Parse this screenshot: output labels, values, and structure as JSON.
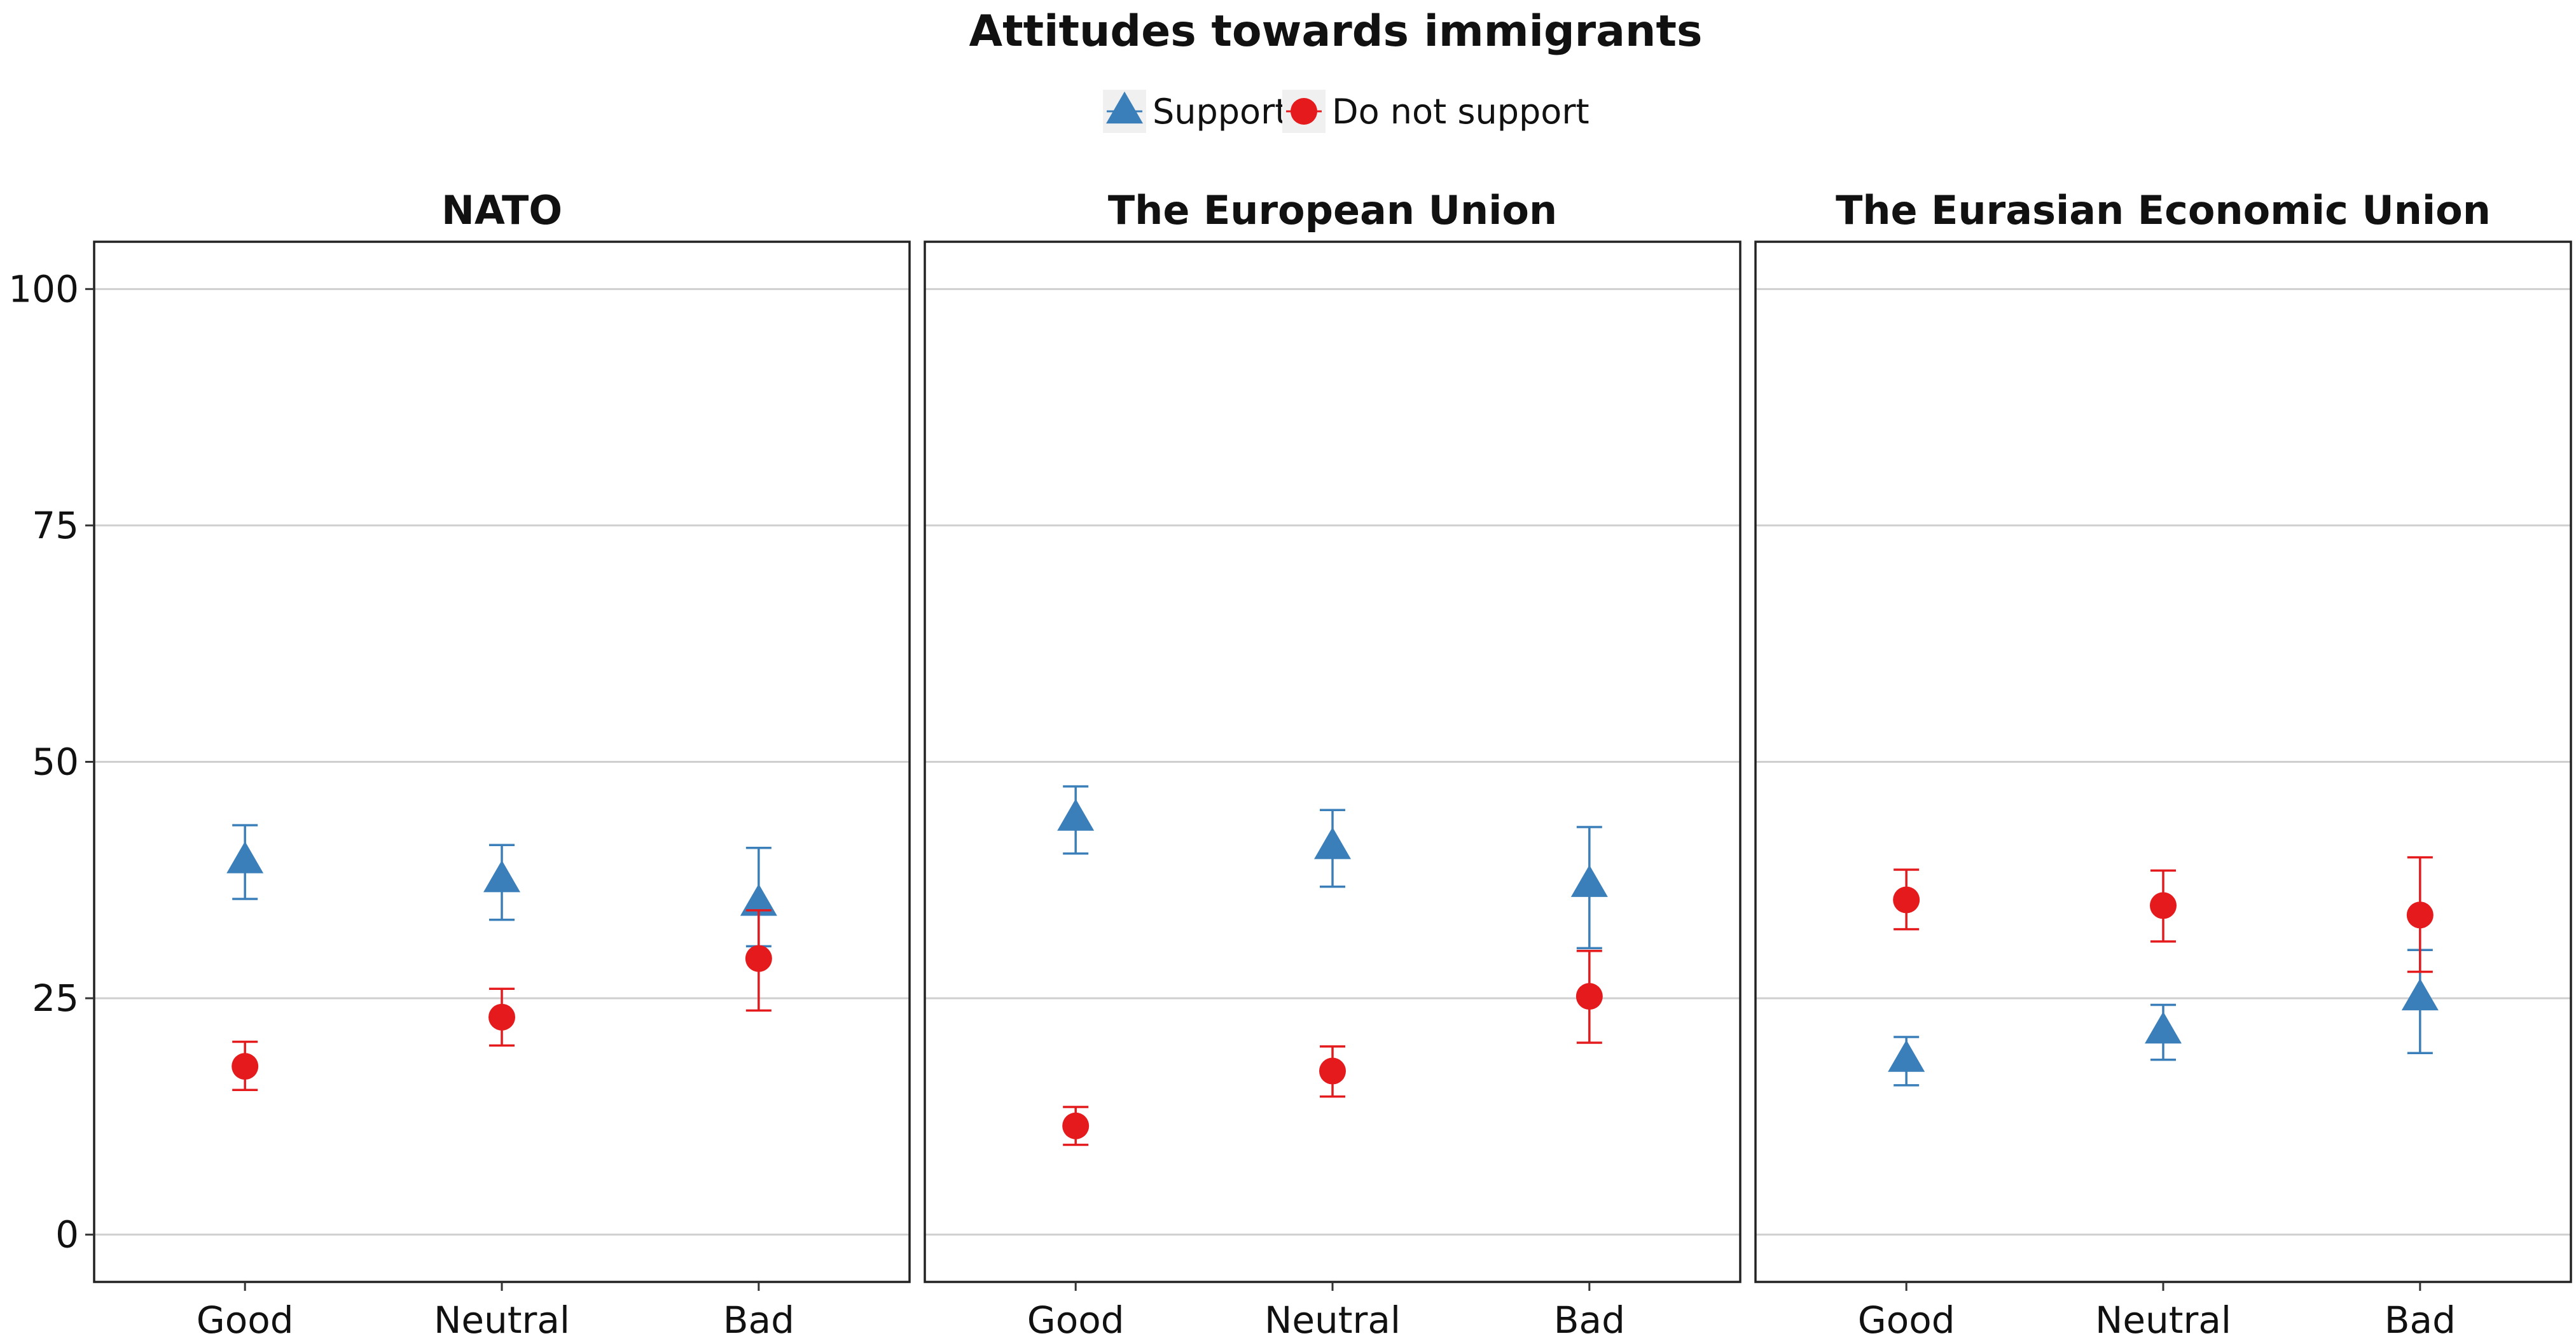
{
  "chart_data": {
    "type": "scatter",
    "title": "Attitudes towards immigrants",
    "legend": {
      "position": "top",
      "entries": [
        {
          "name": "Support",
          "color": "#3a7fba",
          "shape": "triangle"
        },
        {
          "name": "Do not support",
          "color": "#e41a1c",
          "shape": "circle"
        }
      ]
    },
    "ylim": [
      -5,
      105
    ],
    "yticks": [
      0,
      25,
      50,
      75,
      100
    ],
    "grid": true,
    "categories": [
      "Good",
      "Neutral",
      "Bad"
    ],
    "panels": [
      {
        "title": "NATO",
        "series": [
          {
            "name": "Support",
            "values": [
              39.5,
              37.5,
              35.0
            ],
            "lower": [
              35.5,
              33.3,
              30.5
            ],
            "upper": [
              43.3,
              41.2,
              40.9
            ]
          },
          {
            "name": "Do not support",
            "values": [
              17.8,
              23.0,
              29.2
            ],
            "lower": [
              15.3,
              20.0,
              23.7
            ],
            "upper": [
              20.4,
              26.0,
              34.3
            ]
          }
        ]
      },
      {
        "title": "The European Union",
        "series": [
          {
            "name": "Support",
            "values": [
              44.0,
              41.0,
              37.0
            ],
            "lower": [
              40.3,
              36.8,
              30.3
            ],
            "upper": [
              47.4,
              44.9,
              43.1
            ]
          },
          {
            "name": "Do not support",
            "values": [
              11.5,
              17.3,
              25.2
            ],
            "lower": [
              9.5,
              14.6,
              20.3
            ],
            "upper": [
              13.5,
              19.9,
              30.0
            ]
          }
        ]
      },
      {
        "title": "The Eurasian Economic Union",
        "series": [
          {
            "name": "Support",
            "values": [
              18.5,
              21.5,
              25.0
            ],
            "lower": [
              15.8,
              18.5,
              19.2
            ],
            "upper": [
              20.9,
              24.3,
              30.1
            ]
          },
          {
            "name": "Do not support",
            "values": [
              35.4,
              34.8,
              33.8
            ],
            "lower": [
              32.3,
              31.0,
              27.8
            ],
            "upper": [
              38.6,
              38.5,
              39.9
            ]
          }
        ]
      }
    ]
  }
}
